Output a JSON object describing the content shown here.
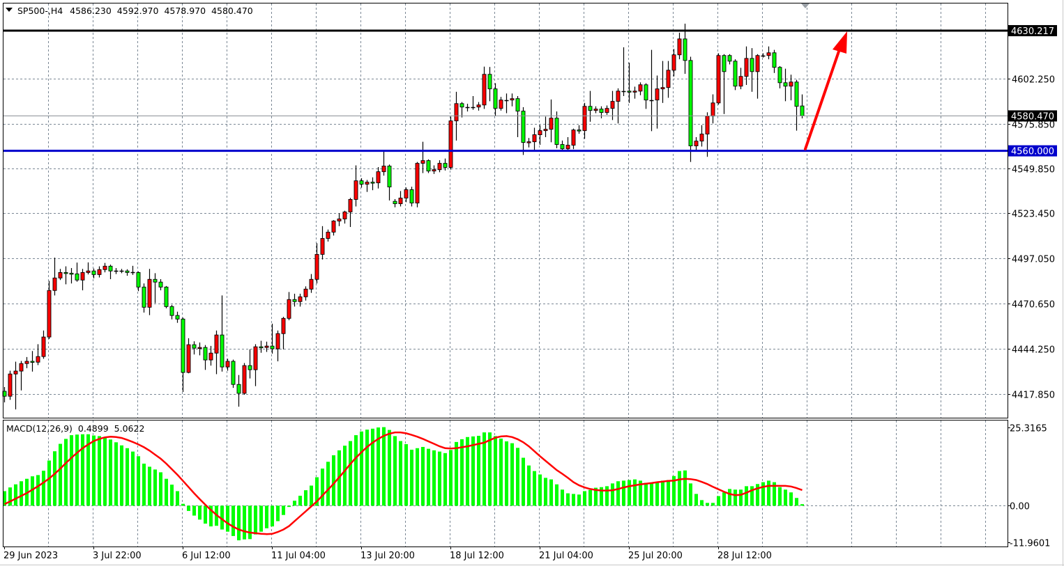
{
  "header": {
    "symbol": "SP500-,H4",
    "open": "4586.230",
    "high": "4592.970",
    "low": "4578.970",
    "close": "4580.470"
  },
  "macd_label": {
    "name": "MACD(12,26,9)",
    "main": "0.4899",
    "signal": "5.0622"
  },
  "colors": {
    "bull": "#ff0000",
    "bear": "#00ff00",
    "histogram": "#00ff00",
    "signal": "#ff0000",
    "resistance": "#000000",
    "support": "#0000cc",
    "arrow": "#ff0000",
    "grid": "#7a8794"
  },
  "levels": {
    "resistance": {
      "value": 4630.217,
      "label": "4630.217"
    },
    "support": {
      "value": 4560.0,
      "label": "4560.000"
    },
    "current": {
      "value": 4580.47,
      "label": "4580.470"
    }
  },
  "chart_data": [
    {
      "type": "candlestick",
      "title": "SP500-,H4",
      "ylim": [
        4404.05,
        4646.1
      ],
      "grid": true,
      "y_ticks": [
        {
          "value": 4602.25,
          "label": "4602.250"
        },
        {
          "value": 4575.85,
          "label": "4575.850"
        },
        {
          "value": 4549.85,
          "label": "4549.850"
        },
        {
          "value": 4523.45,
          "label": "4523.450"
        },
        {
          "value": 4497.05,
          "label": "4497.050"
        },
        {
          "value": 4470.65,
          "label": "4470.650"
        },
        {
          "value": 4444.25,
          "label": "4444.250"
        },
        {
          "value": 4417.85,
          "label": "4417.850"
        }
      ],
      "x_labels": [
        "29 Jun 2023",
        "3 Jul 22:00",
        "6 Jul 12:00",
        "11 Jul 04:00",
        "13 Jul 20:00",
        "18 Jul 12:00",
        "21 Jul 04:00",
        "25 Jul 20:00",
        "28 Jul 12:00"
      ],
      "x_label_every_bars": 16,
      "ohlc": [
        [
          4419.5,
          4422.0,
          4413.0,
          4416.6
        ],
        [
          4416.6,
          4431.5,
          4414.5,
          4429.6
        ],
        [
          4429.6,
          4436.8,
          4408.9,
          4431.3
        ],
        [
          4431.3,
          4437.2,
          4420.0,
          4435.7
        ],
        [
          4435.7,
          4439.5,
          4433.0,
          4437.0
        ],
        [
          4437.0,
          4443.0,
          4431.0,
          4436.5
        ],
        [
          4436.5,
          4447.0,
          4434.8,
          4439.8
        ],
        [
          4439.8,
          4455.0,
          4438.5,
          4451.2
        ],
        [
          4451.2,
          4484.0,
          4450.0,
          4478.4
        ],
        [
          4478.4,
          4497.6,
          4475.5,
          4485.7
        ],
        [
          4485.7,
          4491.0,
          4484.5,
          4488.9
        ],
        [
          4488.9,
          4492.5,
          4482.0,
          4488.5
        ],
        [
          4488.5,
          4491.5,
          4482.5,
          4488.1
        ],
        [
          4488.1,
          4494.7,
          4483.5,
          4484.5
        ],
        [
          4484.5,
          4491.0,
          4478.5,
          4488.9
        ],
        [
          4488.9,
          4494.8,
          4487.8,
          4489.8
        ],
        [
          4489.8,
          4491.2,
          4485.5,
          4487.7
        ],
        [
          4487.7,
          4492.5,
          4486.0,
          4490.6
        ],
        [
          4490.6,
          4494.5,
          4489.0,
          4492.6
        ],
        [
          4492.6,
          4493.5,
          4485.0,
          4489.8
        ],
        [
          4489.8,
          4491.5,
          4488.0,
          4489.8
        ],
        [
          4489.8,
          4491.0,
          4488.5,
          4489.8
        ],
        [
          4489.8,
          4490.8,
          4487.0,
          4488.9
        ],
        [
          4488.9,
          4492.8,
          4487.5,
          4488.9
        ],
        [
          4488.9,
          4489.5,
          4478.0,
          4480.4
        ],
        [
          4480.4,
          4482.5,
          4465.5,
          4468.6
        ],
        [
          4468.6,
          4491.0,
          4464.0,
          4484.9
        ],
        [
          4484.9,
          4488.5,
          4471.0,
          4483.3
        ],
        [
          4483.3,
          4485.0,
          4478.5,
          4480.4
        ],
        [
          4480.4,
          4481.0,
          4468.0,
          4469.0
        ],
        [
          4469.0,
          4470.0,
          4461.5,
          4463.8
        ],
        [
          4463.8,
          4466.0,
          4459.5,
          4461.7
        ],
        [
          4461.7,
          4462.5,
          4419.1,
          4430.5
        ],
        [
          4430.5,
          4450.5,
          4430.0,
          4446.7
        ],
        [
          4446.7,
          4448.7,
          4441.0,
          4444.7
        ],
        [
          4444.7,
          4448.0,
          4440.5,
          4445.1
        ],
        [
          4445.1,
          4446.5,
          4432.0,
          4437.8
        ],
        [
          4437.8,
          4446.0,
          4434.5,
          4441.8
        ],
        [
          4441.8,
          4455.0,
          4429.5,
          4452.4
        ],
        [
          4452.4,
          4475.5,
          4431.0,
          4433.7
        ],
        [
          4433.7,
          4438.5,
          4431.5,
          4437.0
        ],
        [
          4437.0,
          4438.0,
          4421.5,
          4423.5
        ],
        [
          4423.5,
          4429.0,
          4410.5,
          4418.3
        ],
        [
          4418.3,
          4436.0,
          4417.5,
          4434.5
        ],
        [
          4434.5,
          4444.0,
          4427.0,
          4432.1
        ],
        [
          4432.1,
          4447.0,
          4422.5,
          4445.5
        ],
        [
          4445.5,
          4449.0,
          4442.0,
          4445.1
        ],
        [
          4445.1,
          4448.5,
          4442.5,
          4445.9
        ],
        [
          4445.9,
          4459.0,
          4441.5,
          4444.3
        ],
        [
          4444.3,
          4455.0,
          4437.0,
          4453.2
        ],
        [
          4453.2,
          4463.0,
          4444.0,
          4462.1
        ],
        [
          4462.1,
          4477.5,
          4461.0,
          4473.1
        ],
        [
          4473.1,
          4476.5,
          4469.0,
          4471.9
        ],
        [
          4471.9,
          4476.5,
          4469.0,
          4474.7
        ],
        [
          4474.7,
          4480.8,
          4472.5,
          4479.2
        ],
        [
          4479.2,
          4488.0,
          4477.0,
          4484.9
        ],
        [
          4484.9,
          4506.0,
          4482.5,
          4499.5
        ],
        [
          4499.5,
          4516.0,
          4496.5,
          4508.8
        ],
        [
          4508.8,
          4514.0,
          4507.0,
          4512.5
        ],
        [
          4512.5,
          4519.5,
          4510.5,
          4519.0
        ],
        [
          4519.0,
          4523.5,
          4516.0,
          4520.2
        ],
        [
          4520.2,
          4525.0,
          4517.5,
          4524.3
        ],
        [
          4524.3,
          4532.5,
          4515.5,
          4531.6
        ],
        [
          4531.6,
          4551.5,
          4527.5,
          4542.5
        ],
        [
          4542.5,
          4544.0,
          4538.5,
          4540.5
        ],
        [
          4540.5,
          4543.0,
          4536.0,
          4541.7
        ],
        [
          4541.7,
          4544.5,
          4537.0,
          4541.3
        ],
        [
          4541.3,
          4550.5,
          4538.0,
          4547.8
        ],
        [
          4547.8,
          4559.6,
          4545.5,
          4551.1
        ],
        [
          4551.1,
          4552.0,
          4531.0,
          4538.9
        ],
        [
          4530.5,
          4531.8,
          4527.0,
          4529.1
        ],
        [
          4529.1,
          4536.5,
          4527.5,
          4532.4
        ],
        [
          4532.4,
          4538.6,
          4530.0,
          4537.3
        ],
        [
          4537.3,
          4539.0,
          4527.5,
          4529.5
        ],
        [
          4529.5,
          4553.5,
          4527.0,
          4552.7
        ],
        [
          4552.7,
          4565.3,
          4547.0,
          4554.3
        ],
        [
          4554.3,
          4555.0,
          4547.0,
          4548.2
        ],
        [
          4548.2,
          4551.5,
          4546.5,
          4549.0
        ],
        [
          4549.0,
          4554.5,
          4547.5,
          4552.7
        ],
        [
          4552.7,
          4555.5,
          4548.5,
          4550.3
        ],
        [
          4550.3,
          4580.0,
          4549.0,
          4577.5
        ],
        [
          4577.5,
          4594.5,
          4566.0,
          4587.6
        ],
        [
          4587.6,
          4588.5,
          4579.5,
          4585.6
        ],
        [
          4585.6,
          4587.5,
          4583.0,
          4585.6
        ],
        [
          4585.6,
          4592.0,
          4584.0,
          4585.6
        ],
        [
          4585.6,
          4588.5,
          4583.5,
          4586.8
        ],
        [
          4586.8,
          4609.2,
          4584.5,
          4604.7
        ],
        [
          4604.7,
          4609.0,
          4589.0,
          4596.2
        ],
        [
          4596.2,
          4599.5,
          4580.5,
          4584.8
        ],
        [
          4584.8,
          4591.5,
          4583.5,
          4589.7
        ],
        [
          4589.7,
          4593.5,
          4582.0,
          4589.7
        ],
        [
          4589.7,
          4593.5,
          4586.0,
          4590.5
        ],
        [
          4590.5,
          4592.0,
          4568.0,
          4583.2
        ],
        [
          4583.2,
          4585.5,
          4557.6,
          4564.9
        ],
        [
          4564.9,
          4567.5,
          4562.0,
          4565.3
        ],
        [
          4565.3,
          4573.5,
          4560.0,
          4569.4
        ],
        [
          4569.4,
          4575.0,
          4563.5,
          4571.8
        ],
        [
          4571.8,
          4580.0,
          4568.0,
          4572.6
        ],
        [
          4572.6,
          4590.0,
          4565.0,
          4579.1
        ],
        [
          4579.1,
          4583.0,
          4561.5,
          4563.7
        ],
        [
          4563.7,
          4566.0,
          4560.5,
          4561.2
        ],
        [
          4561.2,
          4568.0,
          4560.0,
          4563.3
        ],
        [
          4563.3,
          4573.0,
          4561.0,
          4572.2
        ],
        [
          4572.2,
          4575.0,
          4570.0,
          4571.8
        ],
        [
          4571.8,
          4588.0,
          4567.0,
          4586.0
        ],
        [
          4586.0,
          4595.0,
          4577.0,
          4583.6
        ],
        [
          4583.6,
          4586.0,
          4582.0,
          4584.4
        ],
        [
          4584.4,
          4586.0,
          4579.0,
          4582.4
        ],
        [
          4582.4,
          4586.5,
          4581.0,
          4584.8
        ],
        [
          4584.8,
          4595.0,
          4578.0,
          4588.9
        ],
        [
          4588.9,
          4596.5,
          4576.0,
          4594.9
        ],
        [
          4594.9,
          4620.5,
          4592.0,
          4594.9
        ],
        [
          4594.9,
          4611.5,
          4588.0,
          4594.5
        ],
        [
          4594.5,
          4597.5,
          4590.5,
          4594.9
        ],
        [
          4594.9,
          4600.0,
          4592.5,
          4598.6
        ],
        [
          4598.6,
          4599.5,
          4584.5,
          4589.7
        ],
        [
          4589.7,
          4619.0,
          4571.5,
          4589.7
        ],
        [
          4589.7,
          4604.0,
          4573.0,
          4596.2
        ],
        [
          4596.2,
          4612.5,
          4588.0,
          4597.0
        ],
        [
          4597.0,
          4612.5,
          4591.0,
          4607.1
        ],
        [
          4607.1,
          4619.5,
          4603.5,
          4616.1
        ],
        [
          4616.1,
          4629.0,
          4613.5,
          4625.4
        ],
        [
          4625.4,
          4634.3,
          4605.0,
          4612.8
        ],
        [
          4612.8,
          4615.0,
          4553.5,
          4562.9
        ],
        [
          4562.9,
          4568.0,
          4560.5,
          4565.7
        ],
        [
          4565.7,
          4575.0,
          4562.5,
          4569.8
        ],
        [
          4569.8,
          4582.5,
          4556.5,
          4580.3
        ],
        [
          4580.3,
          4593.0,
          4576.0,
          4588.0
        ],
        [
          4588.0,
          4617.0,
          4587.0,
          4615.7
        ],
        [
          4615.7,
          4616.5,
          4581.5,
          4606.3
        ],
        [
          4615.7,
          4616.5,
          4610.5,
          4612.4
        ],
        [
          4612.4,
          4613.5,
          4595.5,
          4597.8
        ],
        [
          4597.8,
          4608.5,
          4596.0,
          4603.5
        ],
        [
          4603.5,
          4621.0,
          4598.5,
          4614.0
        ],
        [
          4614.0,
          4620.0,
          4594.5,
          4606.3
        ],
        [
          4606.3,
          4616.5,
          4590.5,
          4615.7
        ],
        [
          4615.7,
          4617.0,
          4614.5,
          4615.7
        ],
        [
          4615.7,
          4621.0,
          4613.5,
          4617.3
        ],
        [
          4617.3,
          4619.0,
          4605.5,
          4608.8
        ],
        [
          4608.8,
          4609.5,
          4596.5,
          4599.8
        ],
        [
          4599.8,
          4608.0,
          4589.0,
          4597.8
        ],
        [
          4597.8,
          4604.5,
          4589.5,
          4600.2
        ],
        [
          4600.2,
          4601.5,
          4571.8,
          4586.0
        ],
        [
          4586.23,
          4592.97,
          4578.97,
          4580.47
        ]
      ]
    },
    {
      "type": "bar+line",
      "title": "MACD(12,26,9)",
      "ylim": [
        -13.2,
        27.55
      ],
      "y_ticks": [
        {
          "value": 25.3165,
          "label": "25.3165"
        },
        {
          "value": 0,
          "label": "0.00"
        },
        {
          "value": -11.9601,
          "label": "-11.9601"
        }
      ],
      "histogram": [
        4.7,
        5.9,
        6.9,
        7.9,
        8.7,
        9.5,
        9.9,
        11.3,
        14.6,
        17.6,
        20.0,
        21.6,
        22.8,
        23.0,
        23.1,
        23.1,
        22.7,
        22.5,
        22.2,
        21.4,
        20.5,
        19.5,
        18.6,
        17.5,
        16.0,
        13.6,
        12.6,
        11.7,
        10.8,
        8.7,
        6.8,
        4.7,
        0.6,
        -1.7,
        -3.2,
        -4.5,
        -5.8,
        -6.7,
        -6.5,
        -7.7,
        -8.4,
        -9.8,
        -11.2,
        -10.9,
        -10.8,
        -9.3,
        -8.4,
        -7.3,
        -6.7,
        -5.0,
        -3.0,
        -0.4,
        1.6,
        3.2,
        5.0,
        6.5,
        9.2,
        12.0,
        14.2,
        16.3,
        17.9,
        19.4,
        20.9,
        22.8,
        24.0,
        24.6,
        24.9,
        25.3,
        25.4,
        24.5,
        22.5,
        20.9,
        19.9,
        18.1,
        18.6,
        19.0,
        18.4,
        17.9,
        17.5,
        17.0,
        18.0,
        20.6,
        21.5,
        22.2,
        22.4,
        22.6,
        23.7,
        23.7,
        22.5,
        21.7,
        20.8,
        20.2,
        18.7,
        15.5,
        13.0,
        11.2,
        10.1,
        9.0,
        8.5,
        6.9,
        5.2,
        4.0,
        3.8,
        3.6,
        4.7,
        5.1,
        5.8,
        6.0,
        6.3,
        7.2,
        7.9,
        8.1,
        8.3,
        8.5,
        8.1,
        7.4,
        7.2,
        7.6,
        8.1,
        8.3,
        9.6,
        11.2,
        11.4,
        7.2,
        3.8,
        1.8,
        0.9,
        0.9,
        3.1,
        4.3,
        5.4,
        5.2,
        5.2,
        6.3,
        6.3,
        7.0,
        7.6,
        8.1,
        7.6,
        6.0,
        5.2,
        4.3,
        2.5,
        0.4899
      ],
      "signal": [
        0.5,
        1.4,
        2.3,
        3.2,
        4.1,
        5.2,
        6.3,
        7.5,
        8.8,
        10.3,
        12.0,
        13.8,
        15.5,
        17.1,
        18.6,
        19.8,
        20.9,
        21.6,
        22.1,
        22.3,
        22.2,
        21.9,
        21.3,
        20.6,
        19.8,
        18.9,
        17.8,
        16.5,
        15.2,
        13.6,
        11.8,
        10.0,
        8.0,
        6.0,
        4.0,
        2.1,
        0.3,
        -1.4,
        -3.0,
        -4.4,
        -5.7,
        -6.8,
        -7.7,
        -8.3,
        -8.7,
        -8.9,
        -9.1,
        -9.2,
        -9.1,
        -8.5,
        -7.7,
        -6.6,
        -5.0,
        -3.4,
        -1.8,
        -0.2,
        1.4,
        3.3,
        5.2,
        7.1,
        9.2,
        11.3,
        13.5,
        15.5,
        17.3,
        19.0,
        20.4,
        21.6,
        22.6,
        23.3,
        23.7,
        23.7,
        23.4,
        22.9,
        22.3,
        21.6,
        20.8,
        20.0,
        19.2,
        18.6,
        18.5,
        18.6,
        18.9,
        19.2,
        19.6,
        20.0,
        20.4,
        21.2,
        22.0,
        22.4,
        22.5,
        22.2,
        21.5,
        20.5,
        19.2,
        17.6,
        16.0,
        14.5,
        13.0,
        11.5,
        10.3,
        9.0,
        7.6,
        6.6,
        5.9,
        5.4,
        5.1,
        4.9,
        4.9,
        5.0,
        5.4,
        5.9,
        6.3,
        6.6,
        6.9,
        7.1,
        7.3,
        7.6,
        7.8,
        8.0,
        8.1,
        8.5,
        8.7,
        8.6,
        8.3,
        7.7,
        7.0,
        6.1,
        5.3,
        4.5,
        3.8,
        3.4,
        3.5,
        4.2,
        5.0,
        5.6,
        6.1,
        6.4,
        6.4,
        6.4,
        6.4,
        6.2,
        5.7,
        5.0622
      ]
    }
  ]
}
